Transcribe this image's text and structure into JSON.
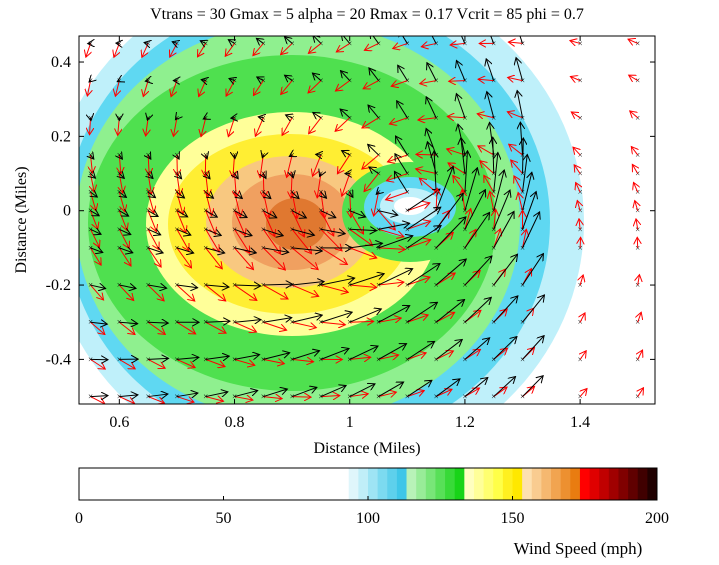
{
  "chart_data": {
    "type": "heatmap",
    "title": "Vtrans = 30 Gmax = 5 alpha = 20 Rmax = 0.17 Vcrit = 85 phi = 0.7",
    "xlabel": "Distance (Miles)",
    "ylabel": "Distance (Miles)",
    "xlim": [
      0.53,
      1.53
    ],
    "ylim": [
      -0.52,
      0.47
    ],
    "xticks": [
      "0.6",
      "0.8",
      "1",
      "1.2",
      "1.4"
    ],
    "xtick_values": [
      0.6,
      0.8,
      1.0,
      1.2,
      1.4
    ],
    "yticks": [
      "0.4",
      "0.2",
      "0",
      "-0.2",
      "-0.4"
    ],
    "ytick_values": [
      0.4,
      0.2,
      0.0,
      -0.2,
      -0.4
    ],
    "grid": false,
    "eye_center": [
      1.1,
      0.02
    ],
    "max_wind_center": [
      0.9,
      -0.1
    ],
    "vector_grid": {
      "x": [
        0.55,
        0.6,
        0.65,
        0.7,
        0.75,
        0.8,
        0.85,
        0.9,
        0.95,
        1.0,
        1.05,
        1.1,
        1.15,
        1.2,
        1.25,
        1.3,
        1.4,
        1.5
      ],
      "y": [
        0.45,
        0.35,
        0.25,
        0.15,
        0.1,
        0.05,
        0.0,
        -0.05,
        -0.1,
        -0.2,
        -0.3,
        -0.4,
        -0.5
      ]
    },
    "series": [
      {
        "name": "",
        "color": "#000000"
      },
      {
        "name": "",
        "color": "#ff0000"
      }
    ],
    "colorbar": {
      "label": "Wind Speed (mph)",
      "range": [
        0,
        200
      ],
      "ticks": [
        "0",
        "50",
        "100",
        "150",
        "200"
      ],
      "tick_values": [
        0,
        50,
        100,
        150,
        200
      ]
    }
  }
}
